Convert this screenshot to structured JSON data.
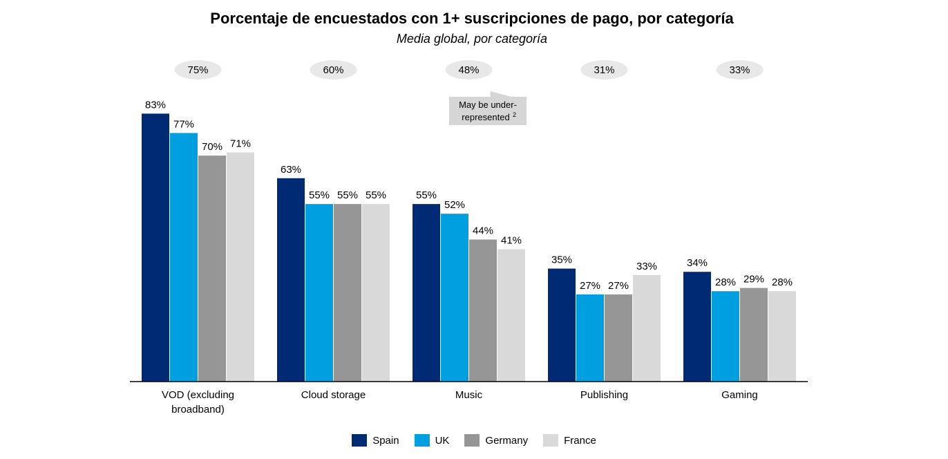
{
  "title": "Porcentaje de encuestados con 1+ suscripciones de pago, por categoría",
  "subtitle": "Media global, por categoría",
  "note": {
    "line1": "May be under-",
    "line2": "represented",
    "superscript": "2"
  },
  "colors": {
    "Spain": "#002a73",
    "UK": "#00a0e0",
    "Germany": "#969696",
    "France": "#d9d9d9",
    "bubble": "#e8e8e8",
    "note_box": "#d6d6d6",
    "axis": "#000000"
  },
  "chart_data": {
    "type": "bar",
    "categories": [
      [
        "VOD (excluding",
        "broadband)"
      ],
      [
        "Cloud storage"
      ],
      [
        "Music"
      ],
      [
        "Publishing"
      ],
      [
        "Gaming"
      ]
    ],
    "global_average_labels": [
      "75%",
      "60%",
      "48%",
      "31%",
      "33%"
    ],
    "series": [
      {
        "name": "Spain",
        "values": [
          83,
          63,
          55,
          35,
          34
        ]
      },
      {
        "name": "UK",
        "values": [
          77,
          55,
          52,
          27,
          28
        ]
      },
      {
        "name": "Germany",
        "values": [
          70,
          55,
          44,
          27,
          29
        ]
      },
      {
        "name": "France",
        "values": [
          71,
          55,
          41,
          33,
          28
        ]
      }
    ],
    "value_suffix": "%",
    "ylim": [
      0,
      100
    ],
    "grid": false,
    "legend_position": "bottom"
  }
}
